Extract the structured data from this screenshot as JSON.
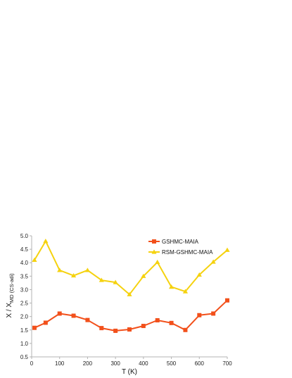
{
  "chart_data": {
    "type": "line",
    "xlabel": "T (K)",
    "ylabel_main": "X / X",
    "ylabel_sub": "MD (CS-adi)",
    "xlim": [
      0,
      700
    ],
    "ylim": [
      0.5,
      5.0
    ],
    "xticks": [
      0,
      100,
      200,
      300,
      400,
      500,
      600,
      700
    ],
    "yticks": [
      0.5,
      1.0,
      1.5,
      2.0,
      2.5,
      3.0,
      3.5,
      4.0,
      4.5,
      5.0
    ],
    "ytick_labels": [
      "0.5",
      "1.0",
      "1.5",
      "2.0",
      "2.5",
      "3.0",
      "3.5",
      "4.0",
      "4.5",
      "5.0"
    ],
    "grid": false,
    "legend_position": "top-right",
    "series": [
      {
        "name": "GSHMC-MAIA",
        "color": "#f2501b",
        "marker": "square",
        "x": [
          10,
          50,
          100,
          150,
          200,
          250,
          300,
          350,
          400,
          450,
          500,
          550,
          600,
          650,
          700
        ],
        "y": [
          1.58,
          1.77,
          2.11,
          2.03,
          1.87,
          1.57,
          1.47,
          1.52,
          1.65,
          1.86,
          1.76,
          1.5,
          2.05,
          2.11,
          2.6
        ]
      },
      {
        "name": "RSM-GSHMC-MAIA",
        "color": "#f5d20f",
        "marker": "triangle",
        "x": [
          10,
          50,
          100,
          150,
          200,
          250,
          300,
          350,
          400,
          450,
          500,
          550,
          600,
          650,
          700
        ],
        "y": [
          4.1,
          4.8,
          3.72,
          3.52,
          3.72,
          3.35,
          3.27,
          2.82,
          3.5,
          4.02,
          3.1,
          2.93,
          3.55,
          4.03,
          4.47
        ]
      }
    ]
  }
}
